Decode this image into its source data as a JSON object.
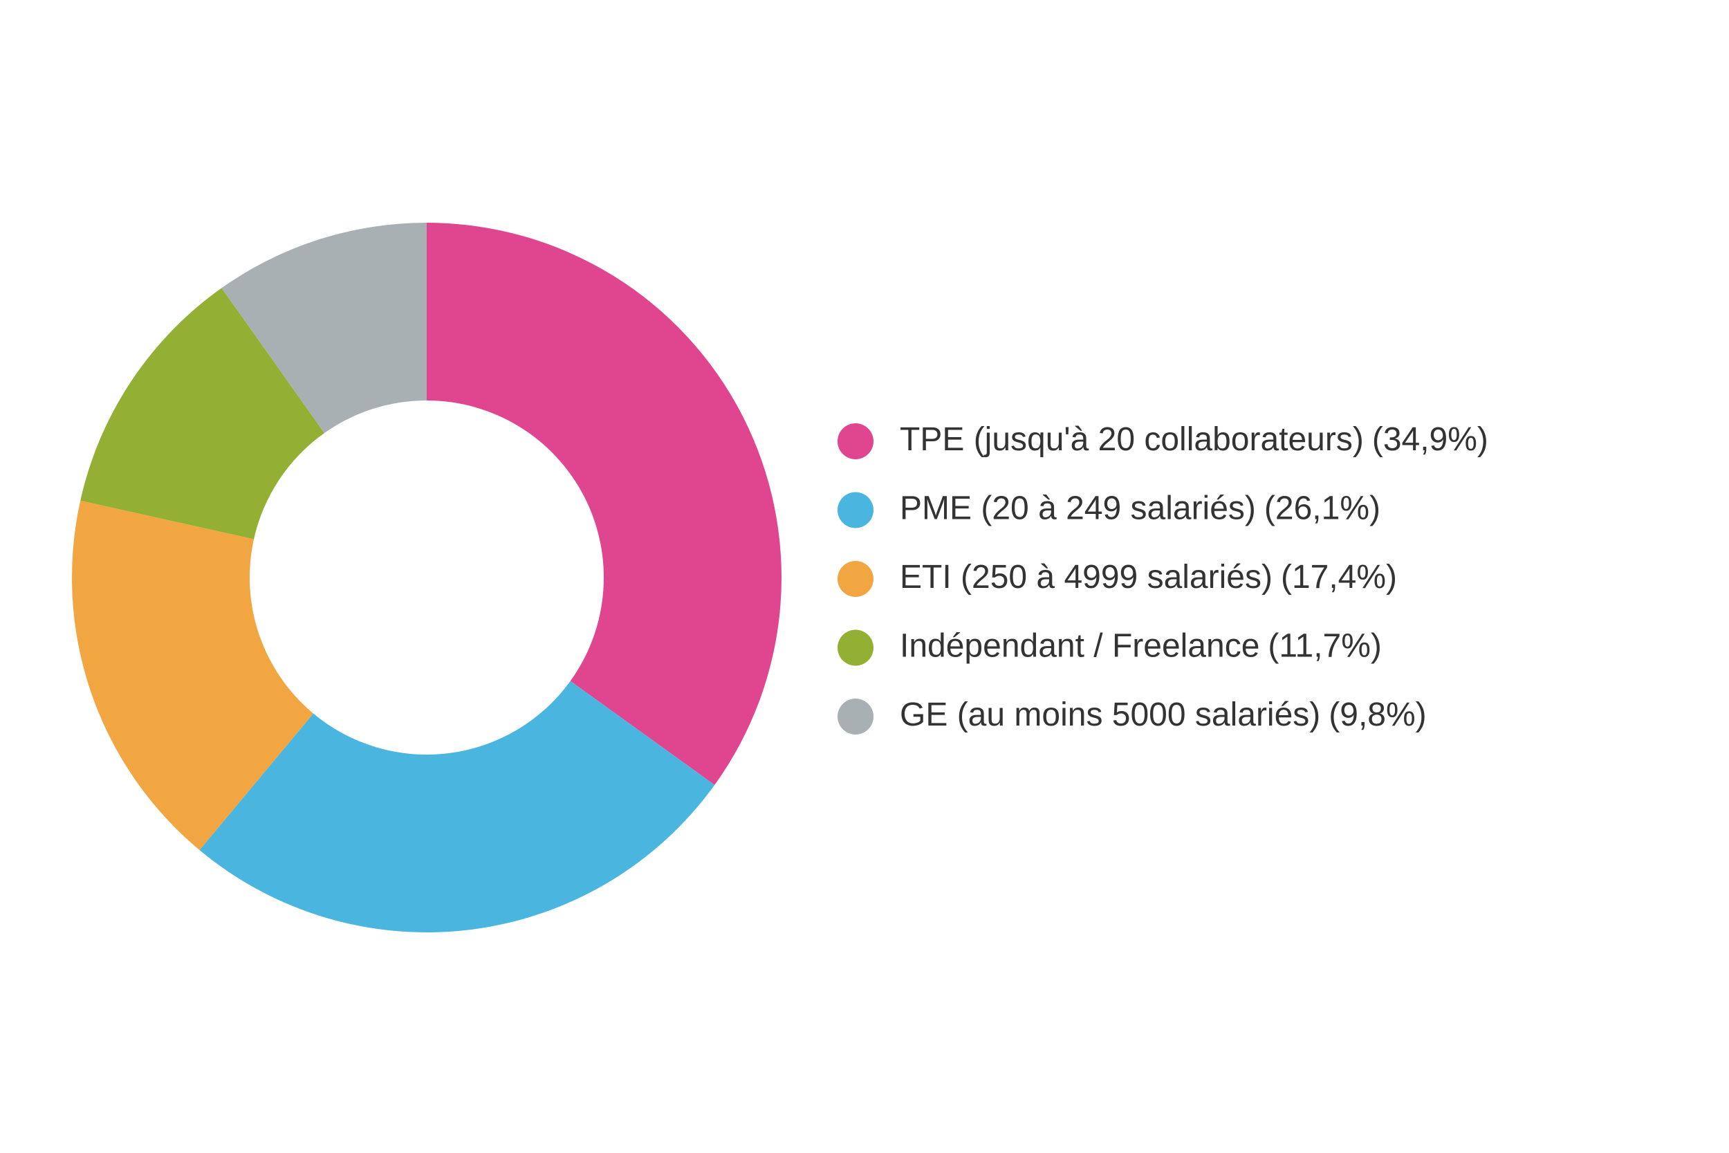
{
  "chart_data": {
    "type": "donut",
    "categories": [
      "TPE (jusqu'à 20 collaborateurs)",
      "PME (20 à 249 salariés)",
      "ETI (250 à 4999 salariés)",
      "Indépendant / Freelance",
      "GE (au moins 5000 salariés)"
    ],
    "values": [
      34.9,
      26.1,
      17.4,
      11.7,
      9.8
    ],
    "value_labels": [
      "(34,9%)",
      "(26,1%)",
      "(17,4%)",
      "(11,7%)",
      "(9,8%)"
    ],
    "colors": [
      "#e0468f",
      "#4ab6e0",
      "#f2a641",
      "#93b034",
      "#a9b0b3"
    ],
    "legend": "right"
  }
}
